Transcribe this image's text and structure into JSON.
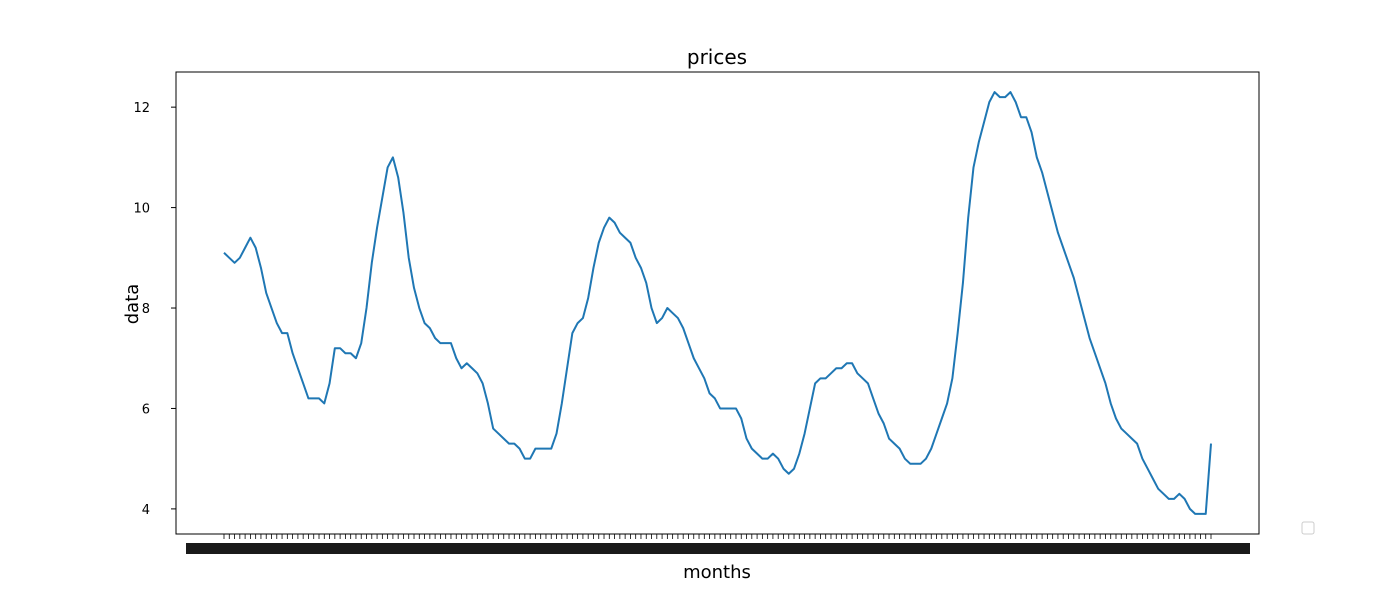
{
  "chart_data": {
    "type": "line",
    "title": "prices",
    "xlabel": "months",
    "ylabel": "data",
    "ylim": [
      3.5,
      12.7
    ],
    "yticks": [
      4,
      6,
      8,
      10,
      12
    ],
    "grid": false,
    "legend": {
      "location": "lower-right",
      "entries": []
    },
    "series": [
      {
        "color": "#1f77b4",
        "values": [
          9.1,
          9.0,
          8.9,
          9.0,
          9.2,
          9.4,
          9.2,
          8.8,
          8.3,
          8.0,
          7.7,
          7.5,
          7.5,
          7.1,
          6.8,
          6.5,
          6.2,
          6.2,
          6.2,
          6.1,
          6.5,
          7.2,
          7.2,
          7.1,
          7.1,
          7.0,
          7.3,
          8.0,
          8.9,
          9.6,
          10.2,
          10.8,
          11.0,
          10.6,
          9.9,
          9.0,
          8.4,
          8.0,
          7.7,
          7.6,
          7.4,
          7.3,
          7.3,
          7.3,
          7.0,
          6.8,
          6.9,
          6.8,
          6.7,
          6.5,
          6.1,
          5.6,
          5.5,
          5.4,
          5.3,
          5.3,
          5.2,
          5.0,
          5.0,
          5.2,
          5.2,
          5.2,
          5.2,
          5.5,
          6.1,
          6.8,
          7.5,
          7.7,
          7.8,
          8.2,
          8.8,
          9.3,
          9.6,
          9.8,
          9.7,
          9.5,
          9.4,
          9.3,
          9.0,
          8.8,
          8.5,
          8.0,
          7.7,
          7.8,
          8.0,
          7.9,
          7.8,
          7.6,
          7.3,
          7.0,
          6.8,
          6.6,
          6.3,
          6.2,
          6.0,
          6.0,
          6.0,
          6.0,
          5.8,
          5.4,
          5.2,
          5.1,
          5.0,
          5.0,
          5.1,
          5.0,
          4.8,
          4.7,
          4.8,
          5.1,
          5.5,
          6.0,
          6.5,
          6.6,
          6.6,
          6.7,
          6.8,
          6.8,
          6.9,
          6.9,
          6.7,
          6.6,
          6.5,
          6.2,
          5.9,
          5.7,
          5.4,
          5.3,
          5.2,
          5.0,
          4.9,
          4.9,
          4.9,
          5.0,
          5.2,
          5.5,
          5.8,
          6.1,
          6.6,
          7.5,
          8.5,
          9.8,
          10.8,
          11.3,
          11.7,
          12.1,
          12.3,
          12.2,
          12.2,
          12.3,
          12.1,
          11.8,
          11.8,
          11.5,
          11.0,
          10.7,
          10.3,
          9.9,
          9.5,
          9.2,
          8.9,
          8.6,
          8.2,
          7.8,
          7.4,
          7.1,
          6.8,
          6.5,
          6.1,
          5.8,
          5.6,
          5.5,
          5.4,
          5.3,
          5.0,
          4.8,
          4.6,
          4.4,
          4.3,
          4.2,
          4.2,
          4.3,
          4.2,
          4.0,
          3.9,
          3.9,
          3.9,
          5.3
        ]
      }
    ]
  }
}
